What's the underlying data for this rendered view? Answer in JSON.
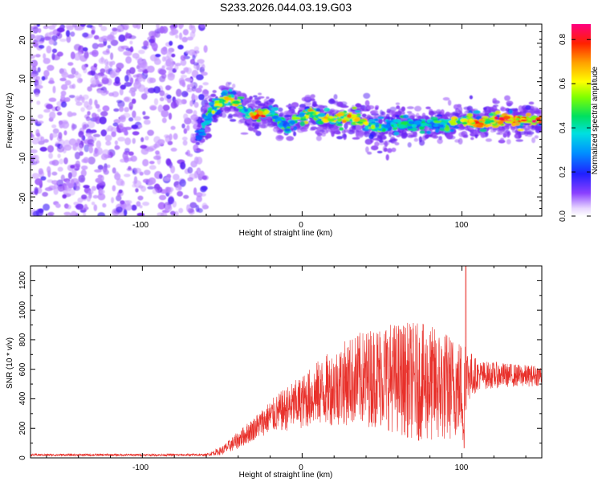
{
  "chart_data": [
    {
      "type": "heatmap",
      "title": "S233.2026.044.03.19.G03",
      "xlabel": "Height of straight line (km)",
      "ylabel": "Frequency (Hz)",
      "xlim": [
        -170,
        150
      ],
      "ylim": [
        -25,
        25
      ],
      "xticks": [
        -100,
        0,
        100
      ],
      "yticks": [
        -20,
        -10,
        0,
        10,
        20
      ],
      "xtick_labels": [
        "-100",
        "0",
        "100"
      ],
      "ytick_labels": [
        "-20",
        "-10",
        "0",
        "10",
        "20"
      ],
      "colorbar": {
        "label": "Normalized spectral amplitude",
        "range": [
          0.0,
          0.87
        ],
        "ticks": [
          0.0,
          0.2,
          0.4,
          0.6,
          0.8
        ],
        "tick_labels": [
          "0.0",
          "0.2",
          "0.4",
          "0.6",
          "0.8"
        ]
      },
      "ridge": {
        "x": [
          -65,
          -60,
          -55,
          -50,
          -45,
          -40,
          -35,
          -30,
          -25,
          -20,
          -15,
          -10,
          -5,
          0,
          5,
          10,
          20,
          30,
          40,
          50,
          60,
          70,
          80,
          90,
          100,
          110,
          120,
          130,
          140,
          150
        ],
        "freq": [
          -5,
          0,
          3,
          5,
          6,
          4,
          2,
          1,
          2,
          2,
          0,
          -2,
          0,
          1,
          2,
          1,
          0,
          1,
          -1,
          -2,
          -1,
          -1,
          -1,
          -1,
          0,
          -1,
          0,
          0,
          0,
          0
        ],
        "amplitude": [
          0.3,
          0.45,
          0.55,
          0.6,
          0.65,
          0.6,
          0.5,
          0.8,
          0.85,
          0.5,
          0.45,
          0.5,
          0.55,
          0.6,
          0.7,
          0.65,
          0.6,
          0.7,
          0.6,
          0.5,
          0.45,
          0.45,
          0.45,
          0.55,
          0.6,
          0.75,
          0.8,
          0.85,
          0.85,
          0.8
        ]
      },
      "noise_region": {
        "x_range": [
          -170,
          -60
        ],
        "amplitude_range": [
          0.05,
          0.25
        ]
      }
    },
    {
      "type": "line",
      "title": "",
      "xlabel": "Height of straight line (km)",
      "ylabel": "SNR (10 * v/v)",
      "xlim": [
        -170,
        150
      ],
      "ylim": [
        0,
        1300
      ],
      "xticks": [
        -100,
        0,
        100
      ],
      "yticks": [
        0,
        200,
        400,
        600,
        800,
        1000,
        1200
      ],
      "xtick_labels": [
        "-100",
        "0",
        "100"
      ],
      "ytick_labels": [
        "0",
        "200",
        "400",
        "600",
        "800",
        "1000",
        "1200"
      ],
      "color": "#e8302a",
      "envelope": {
        "x": [
          -170,
          -60,
          -50,
          -40,
          -30,
          -20,
          -10,
          0,
          10,
          20,
          30,
          40,
          50,
          60,
          70,
          80,
          90,
          100,
          101,
          103,
          110,
          120,
          130,
          140,
          150
        ],
        "mean": [
          20,
          20,
          50,
          120,
          200,
          280,
          330,
          380,
          440,
          480,
          520,
          540,
          560,
          540,
          520,
          500,
          480,
          480,
          620,
          560,
          560,
          560,
          560,
          555,
          560
        ],
        "amplitude": [
          8,
          8,
          30,
          60,
          80,
          110,
          150,
          180,
          220,
          260,
          300,
          330,
          360,
          380,
          400,
          400,
          380,
          320,
          700,
          200,
          100,
          90,
          80,
          75,
          70
        ]
      }
    }
  ]
}
